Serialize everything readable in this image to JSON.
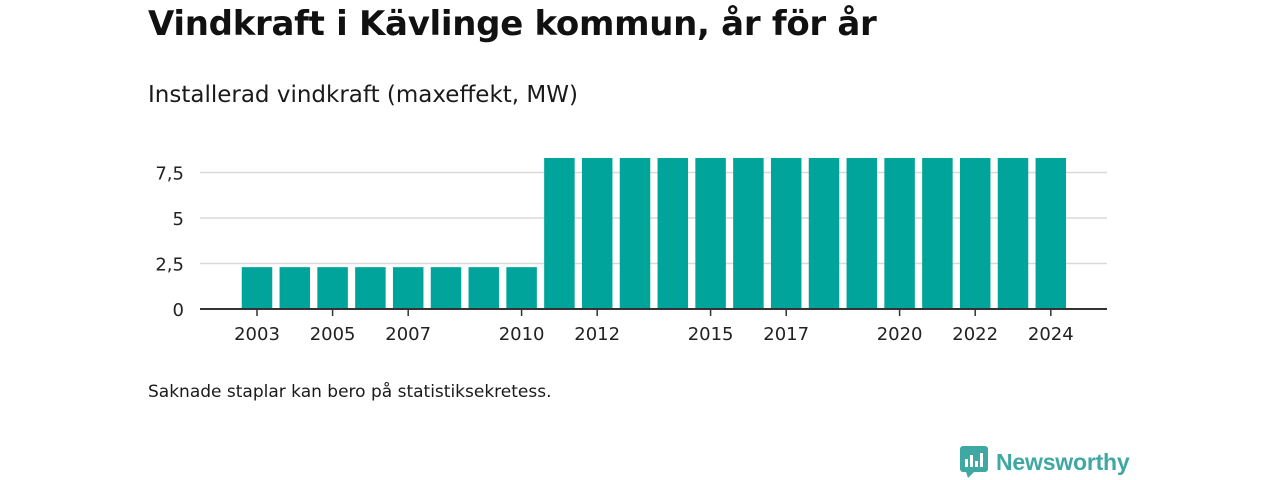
{
  "title": "Vindkraft i Kävlinge kommun, år för år",
  "subtitle": "Installerad vindkraft (maxeffekt, MW)",
  "note": "Saknade staplar kan bero på statistiksekretess.",
  "brand": {
    "name": "Newsworthy",
    "color": "#3fa8a2"
  },
  "colors": {
    "bar": "#00a49a",
    "grid": "#d9d9d9",
    "axis": "#333333"
  },
  "chart_data": {
    "type": "bar",
    "title": "Installerad vindkraft (maxeffekt, MW)",
    "xlabel": "",
    "ylabel": "",
    "categories": [
      "2003",
      "2004",
      "2005",
      "2006",
      "2007",
      "2008",
      "2009",
      "2010",
      "2011",
      "2012",
      "2013",
      "2014",
      "2015",
      "2016",
      "2017",
      "2018",
      "2019",
      "2020",
      "2021",
      "2022",
      "2023",
      "2024"
    ],
    "values": [
      2.3,
      2.3,
      2.3,
      2.3,
      2.3,
      2.3,
      2.3,
      2.3,
      8.3,
      8.3,
      8.3,
      8.3,
      8.3,
      8.3,
      8.3,
      8.3,
      8.3,
      8.3,
      8.3,
      8.3,
      8.3,
      8.3
    ],
    "x_tick_labels": [
      "2003",
      "2005",
      "2007",
      "2010",
      "2012",
      "2015",
      "2017",
      "2020",
      "2022",
      "2024"
    ],
    "y_ticks": [
      0,
      2.5,
      5,
      7.5
    ],
    "y_tick_labels": [
      "0",
      "2,5",
      "5",
      "7,5"
    ],
    "ylim": [
      0,
      8.3
    ],
    "grid": true,
    "legend": "none"
  }
}
